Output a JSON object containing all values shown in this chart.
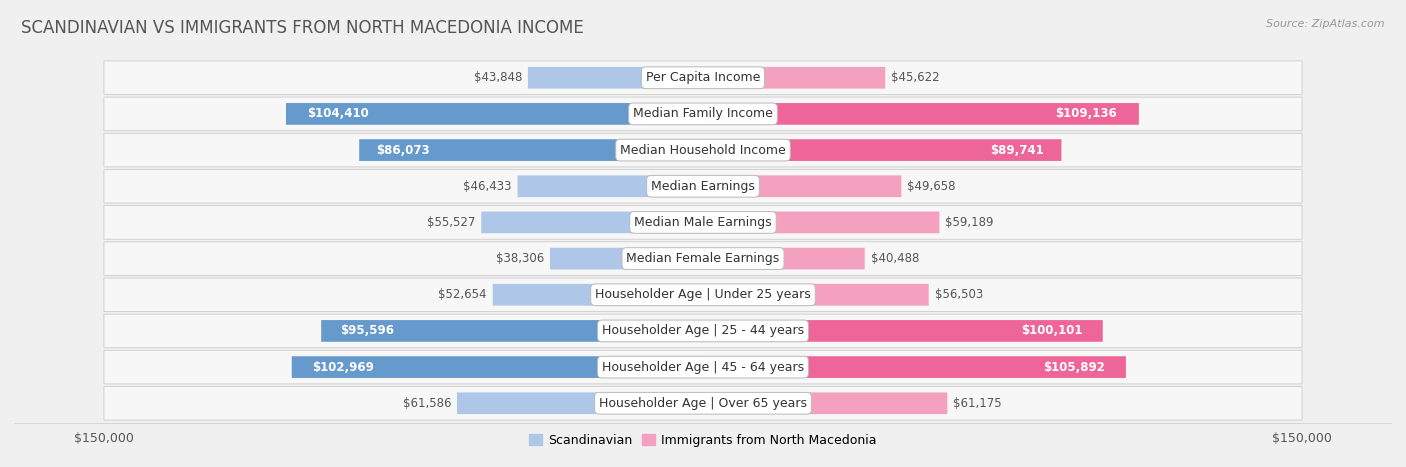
{
  "title": "SCANDINAVIAN VS IMMIGRANTS FROM NORTH MACEDONIA INCOME",
  "source": "Source: ZipAtlas.com",
  "categories": [
    "Per Capita Income",
    "Median Family Income",
    "Median Household Income",
    "Median Earnings",
    "Median Male Earnings",
    "Median Female Earnings",
    "Householder Age | Under 25 years",
    "Householder Age | 25 - 44 years",
    "Householder Age | 45 - 64 years",
    "Householder Age | Over 65 years"
  ],
  "scandinavian_values": [
    43848,
    104410,
    86073,
    46433,
    55527,
    38306,
    52654,
    95596,
    102969,
    61586
  ],
  "immigrant_values": [
    45622,
    109136,
    89741,
    49658,
    59189,
    40488,
    56503,
    100101,
    105892,
    61175
  ],
  "scandinavian_labels": [
    "$43,848",
    "$104,410",
    "$86,073",
    "$46,433",
    "$55,527",
    "$38,306",
    "$52,654",
    "$95,596",
    "$102,969",
    "$61,586"
  ],
  "immigrant_labels": [
    "$45,622",
    "$109,136",
    "$89,741",
    "$49,658",
    "$59,189",
    "$40,488",
    "$56,503",
    "$100,101",
    "$105,892",
    "$61,175"
  ],
  "scand_color_light": "#aec6e8",
  "scand_color_dark": "#6699cc",
  "immig_color_light": "#f4a0bf",
  "immig_color_dark": "#ee6699",
  "scand_label_inside": [
    false,
    true,
    true,
    false,
    false,
    false,
    false,
    true,
    true,
    false
  ],
  "immig_label_inside": [
    false,
    true,
    true,
    false,
    false,
    false,
    false,
    true,
    true,
    false
  ],
  "max_value": 150000,
  "bg_color": "#f0f0f0",
  "row_bg": "#f7f7f7",
  "title_color": "#555555",
  "source_color": "#999999",
  "label_font_size": 8.5,
  "title_font_size": 12,
  "legend_scand": "Scandinavian",
  "legend_immig": "Immigrants from North Macedonia"
}
